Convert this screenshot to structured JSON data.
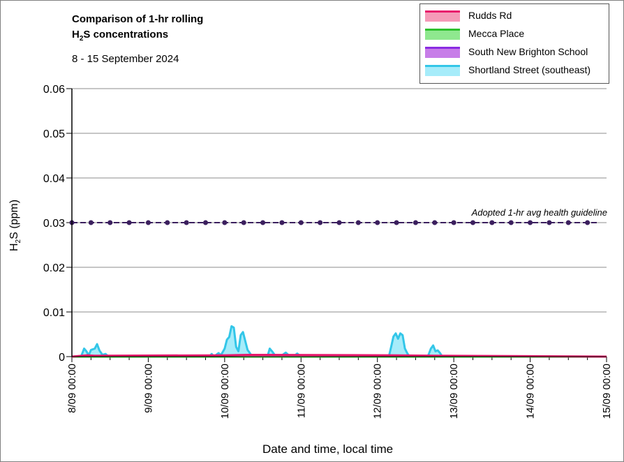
{
  "chart_data": {
    "type": "area",
    "title_line1": "Comparison of 1-hr rolling",
    "title_line2_pre": "H",
    "title_line2_sub": "2",
    "title_line2_post": "S concentrations",
    "subtitle": "8 - 15 September 2024",
    "ylabel_pre": "H",
    "ylabel_sub": "2",
    "ylabel_post": "S (ppm)",
    "xlabel": "Date and time, local time",
    "ylim": [
      0,
      0.06
    ],
    "yticks": [
      "0",
      "0.01",
      "0.02",
      "0.03",
      "0.04",
      "0.05",
      "0.06"
    ],
    "xticks": [
      "8/09 00:00",
      "9/09 00:00",
      "10/09 00:00",
      "11/09 00:00",
      "12/09 00:00",
      "13/09 00:00",
      "14/09 00:00",
      "15/09 00:00"
    ],
    "x_range_days": [
      0,
      7
    ],
    "grid": true,
    "legend_position": "top-right",
    "guideline": {
      "label": "Adopted 1-hr avg health guideline",
      "value": 0.03,
      "color": "#3b1f5e"
    },
    "series": [
      {
        "name": "Rudds Rd",
        "color": "#e8196c",
        "fill": "#f59ab8",
        "points": [
          [
            0,
            0
          ],
          [
            0.2,
            0.0003
          ],
          [
            0.3,
            0.0002
          ],
          [
            2.0,
            0.0003
          ],
          [
            2.3,
            0.0004
          ],
          [
            4.2,
            0.0003
          ],
          [
            4.8,
            0.0002
          ],
          [
            7,
            0
          ]
        ]
      },
      {
        "name": "Mecca Place",
        "color": "#2ec02e",
        "fill": "#8fe88f",
        "points": [
          [
            0,
            0
          ],
          [
            7,
            0
          ]
        ]
      },
      {
        "name": "South New Brighton School",
        "color": "#8a2be2",
        "fill": "#c77de8",
        "points": [
          [
            0,
            0
          ],
          [
            7,
            0
          ]
        ]
      },
      {
        "name": "Shortland Street (southeast)",
        "color": "#33c6e8",
        "fill": "#a6ecfa",
        "points": [
          [
            0,
            0
          ],
          [
            0.12,
            0
          ],
          [
            0.16,
            0.0018
          ],
          [
            0.19,
            0.0012
          ],
          [
            0.22,
            0.0003
          ],
          [
            0.25,
            0.0015
          ],
          [
            0.3,
            0.0018
          ],
          [
            0.33,
            0.0028
          ],
          [
            0.36,
            0.0014
          ],
          [
            0.4,
            0.0004
          ],
          [
            0.44,
            0.0006
          ],
          [
            0.48,
            0
          ],
          [
            1.8,
            0
          ],
          [
            1.83,
            0.0006
          ],
          [
            1.86,
            0
          ],
          [
            1.92,
            0.0008
          ],
          [
            1.95,
            0.0003
          ],
          [
            1.98,
            0.0012
          ],
          [
            2.0,
            0.0018
          ],
          [
            2.03,
            0.0038
          ],
          [
            2.06,
            0.0044
          ],
          [
            2.09,
            0.0068
          ],
          [
            2.12,
            0.0065
          ],
          [
            2.15,
            0.0022
          ],
          [
            2.18,
            0.0012
          ],
          [
            2.21,
            0.0048
          ],
          [
            2.24,
            0.0055
          ],
          [
            2.27,
            0.0035
          ],
          [
            2.3,
            0.0015
          ],
          [
            2.33,
            0.0008
          ],
          [
            2.36,
            0
          ],
          [
            2.56,
            0
          ],
          [
            2.59,
            0.0018
          ],
          [
            2.62,
            0.0012
          ],
          [
            2.65,
            0.0005
          ],
          [
            2.68,
            0
          ],
          [
            2.76,
            0.0004
          ],
          [
            2.8,
            0.0009
          ],
          [
            2.84,
            0.0003
          ],
          [
            2.9,
            0
          ],
          [
            2.95,
            0.0007
          ],
          [
            3.0,
            0
          ],
          [
            4.15,
            0
          ],
          [
            4.18,
            0.0022
          ],
          [
            4.21,
            0.0045
          ],
          [
            4.24,
            0.0052
          ],
          [
            4.27,
            0.004
          ],
          [
            4.3,
            0.0052
          ],
          [
            4.33,
            0.0048
          ],
          [
            4.36,
            0.0018
          ],
          [
            4.39,
            0.0008
          ],
          [
            4.42,
            0
          ],
          [
            4.66,
            0
          ],
          [
            4.7,
            0.0018
          ],
          [
            4.73,
            0.0025
          ],
          [
            4.76,
            0.0012
          ],
          [
            4.79,
            0.0014
          ],
          [
            4.82,
            0.0008
          ],
          [
            4.85,
            0
          ],
          [
            7,
            0
          ]
        ]
      }
    ]
  }
}
